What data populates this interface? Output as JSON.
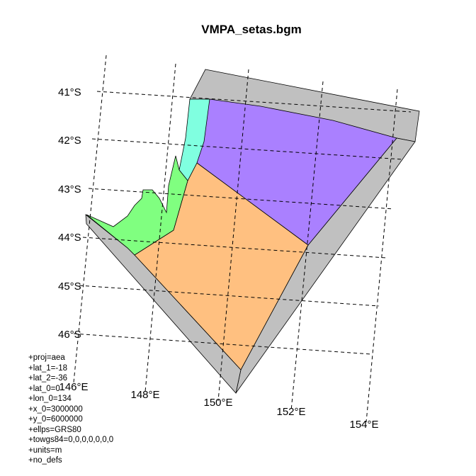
{
  "title": "VMPA_setas.bgm",
  "lat_labels": [
    "41°S",
    "42°S",
    "43°S",
    "44°S",
    "45°S",
    "46°S"
  ],
  "lon_labels": [
    "146°E",
    "148°E",
    "150°E",
    "152°E",
    "154°E"
  ],
  "proj_params": [
    "+proj=aea",
    "+lat_1=-18",
    "+lat_2=-36",
    "+lat_0=0",
    "+lon_0=134",
    "+x_0=3000000",
    "+y_0=6000000",
    "+ellps=GRS80",
    "+towgs84=0,0,0,0,0,0,0",
    "+units=m",
    "+no_defs"
  ],
  "colors": {
    "boundary_box": "#c0c0c0",
    "coastal_north": "#80ffe0",
    "coastal_south": "#80ff80",
    "offshore_north": "#aa80ff",
    "offshore_south": "#ffc080",
    "outline": "#000000"
  }
}
